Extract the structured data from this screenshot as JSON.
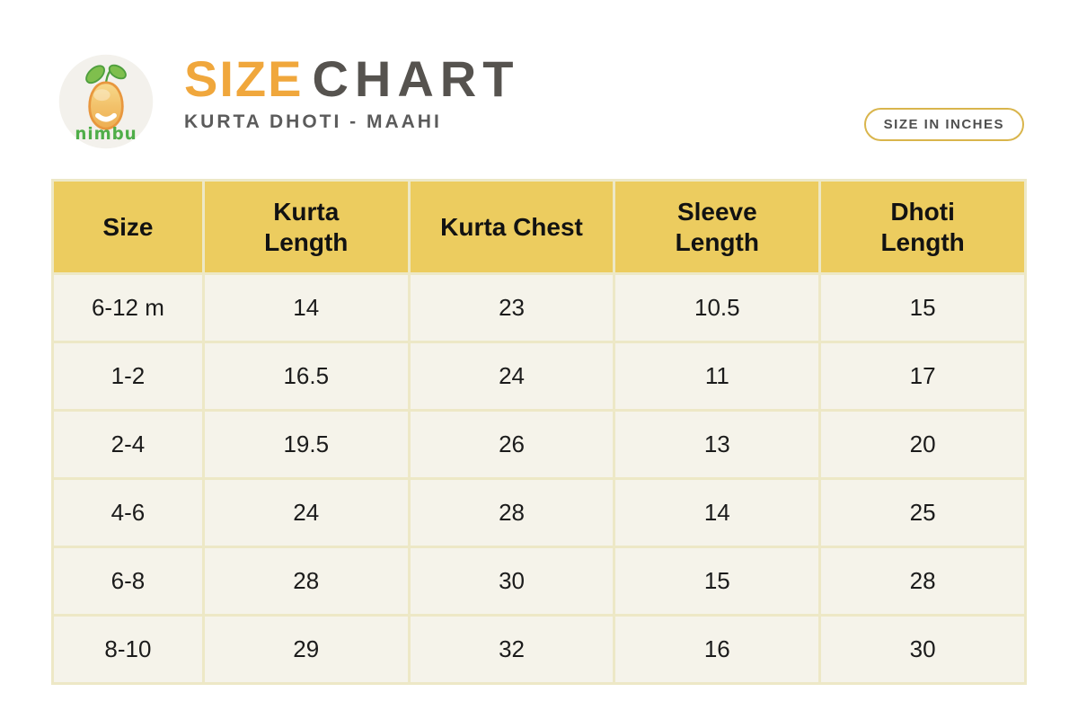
{
  "header": {
    "logo": {
      "brand": "nimbu"
    },
    "title_primary": "SIZE",
    "title_secondary": "CHART",
    "subtitle": "KURTA DHOTI - MAAHI",
    "badge": "SIZE IN INCHES"
  },
  "colors": {
    "accent_orange": "#F0A73C",
    "title_gray": "#56534F",
    "subtitle_gray": "#5B5B5B",
    "badge_border_gold": "#D9B54C",
    "header_row_yellow": "#ECCC5F",
    "body_row_cream": "#F5F3EA",
    "grid_border_khaki": "#EDE8C6",
    "cell_text": "#1B1B1B",
    "logo_green": "#4FAE49",
    "lemon_orange": "#EDAE52"
  },
  "chart_data": {
    "type": "table",
    "title": "SIZE CHART",
    "subtitle": "KURTA DHOTI - MAAHI",
    "unit": "inches",
    "columns": [
      "Size",
      "Kurta\nLength",
      "Kurta Chest",
      "Sleeve\nLength",
      "Dhoti\nLength"
    ],
    "rows": [
      [
        "6-12 m",
        "14",
        "23",
        "10.5",
        "15"
      ],
      [
        "1-2",
        "16.5",
        "24",
        "11",
        "17"
      ],
      [
        "2-4",
        "19.5",
        "26",
        "13",
        "20"
      ],
      [
        "4-6",
        "24",
        "28",
        "14",
        "25"
      ],
      [
        "6-8",
        "28",
        "30",
        "15",
        "28"
      ],
      [
        "8-10",
        "29",
        "32",
        "16",
        "30"
      ]
    ],
    "layout": {
      "header_position": "top",
      "grid": true
    }
  }
}
